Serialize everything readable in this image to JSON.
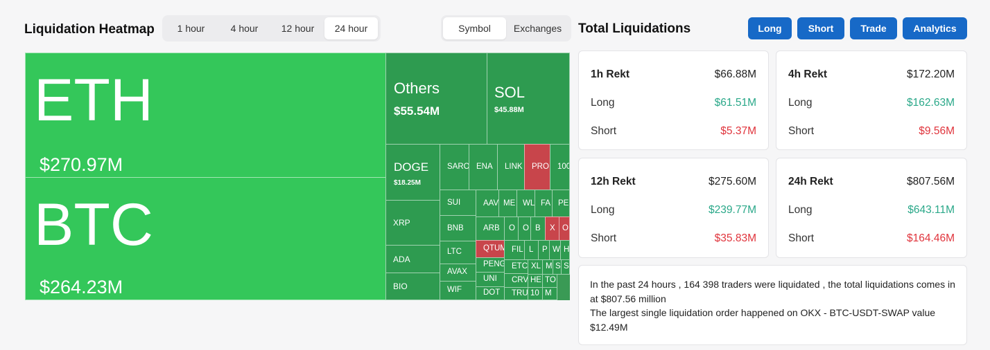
{
  "heatmap": {
    "title": "Liquidation Heatmap",
    "time_options": [
      "1 hour",
      "4 hour",
      "12 hour",
      "24 hour"
    ],
    "time_selected": "24 hour",
    "mode_options": [
      "Symbol",
      "Exchanges"
    ],
    "mode_selected": "Symbol",
    "tiles": {
      "eth": {
        "symbol": "ETH",
        "value": "$270.97M"
      },
      "btc": {
        "symbol": "BTC",
        "value": "$264.23M"
      },
      "others": {
        "symbol": "Others",
        "value": "$55.54M"
      },
      "sol": {
        "symbol": "SOL",
        "value": "$45.88M"
      },
      "doge": {
        "symbol": "DOGE",
        "value": "$18.25M"
      },
      "xrp": {
        "symbol": "XRP"
      },
      "ada": {
        "symbol": "ADA"
      },
      "bio": {
        "symbol": "BIO"
      },
      "small": [
        "SARO",
        "ENA",
        "LINK",
        "PRO",
        "100",
        "SUI",
        "AAV",
        "ME",
        "WL",
        "FA",
        "PE",
        "BNB",
        "ARB",
        "O",
        "O",
        "B",
        "X",
        "O",
        "LTC",
        "QTUM",
        "FIL",
        "L",
        "P",
        "W",
        "H",
        "AVAX",
        "PENG",
        "ETC",
        "XL",
        "M",
        "S",
        "S",
        "WIF",
        "UNI",
        "CRV",
        "HE",
        "TO",
        "DOT",
        "TRU",
        "10",
        "M"
      ]
    }
  },
  "totals": {
    "title": "Total Liquidations",
    "buttons": [
      "Long",
      "Short",
      "Trade",
      "Analytics"
    ],
    "cards": [
      {
        "period": "1h Rekt",
        "total": "$66.88M",
        "long_label": "Long",
        "long": "$61.51M",
        "short_label": "Short",
        "short": "$5.37M"
      },
      {
        "period": "4h Rekt",
        "total": "$172.20M",
        "long_label": "Long",
        "long": "$162.63M",
        "short_label": "Short",
        "short": "$9.56M"
      },
      {
        "period": "12h Rekt",
        "total": "$275.60M",
        "long_label": "Long",
        "long": "$239.77M",
        "short_label": "Short",
        "short": "$35.83M"
      },
      {
        "period": "24h Rekt",
        "total": "$807.56M",
        "long_label": "Long",
        "long": "$643.11M",
        "short_label": "Short",
        "short": "$164.46M"
      }
    ],
    "summary_line1": "In the past 24 hours , 164 398 traders were liquidated , the total liquidations comes in at $807.56 million",
    "summary_line2": "The largest single liquidation order happened on OKX - BTC-USDT-SWAP value $12.49M"
  },
  "colors": {
    "accent": "#1769c7",
    "long": "#2aa889",
    "short": "#e0343c",
    "tile_green": "#34c75a",
    "tile_dark": "#2e9b50",
    "tile_red": "#c8454b"
  }
}
